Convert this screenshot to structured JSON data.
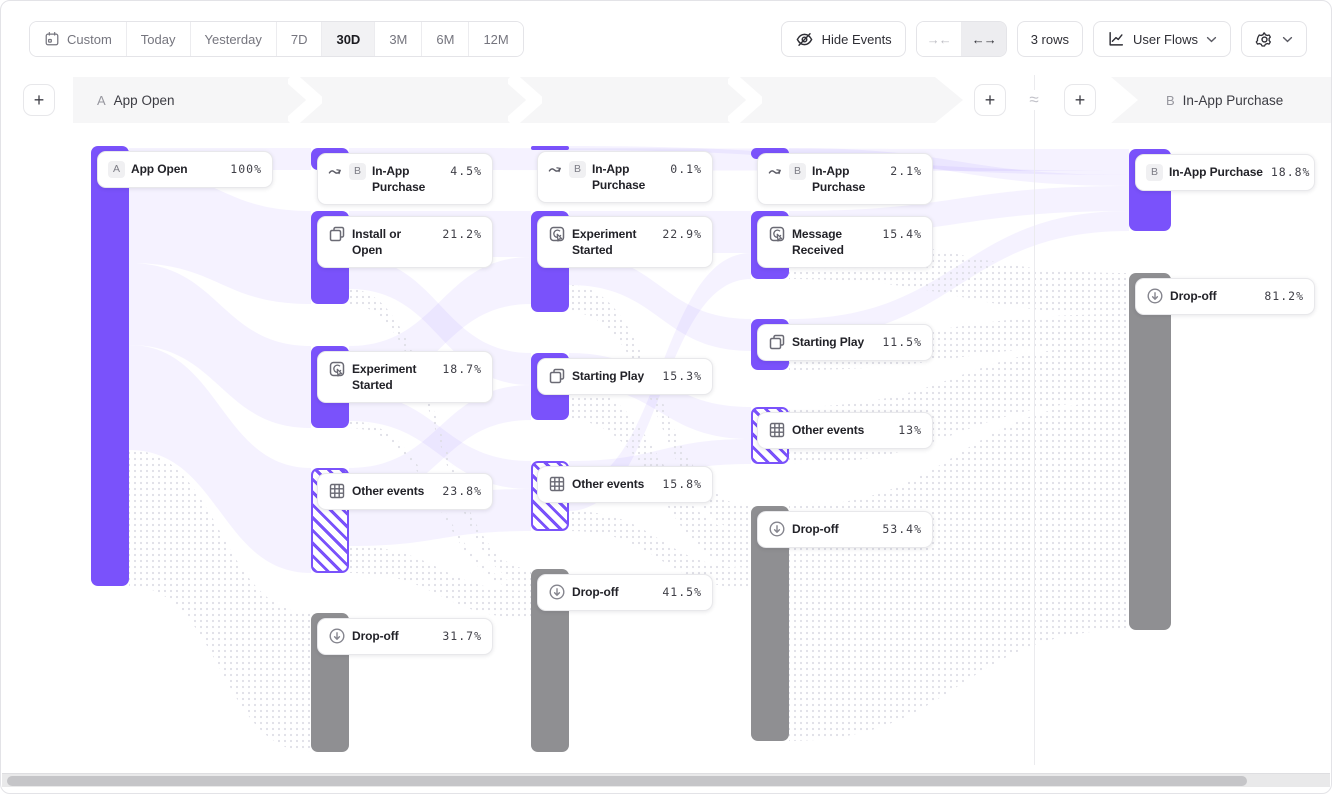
{
  "toolbar": {
    "date_ranges": [
      "Custom",
      "Today",
      "Yesterday",
      "7D",
      "30D",
      "3M",
      "6M",
      "12M"
    ],
    "selected_range": "30D",
    "hide_events_label": "Hide Events",
    "rows_label": "3 rows",
    "view_label": "User Flows"
  },
  "flow_header": {
    "start_badge": "A",
    "start_label": "App Open",
    "end_badge": "B",
    "end_label": "In-App Purchase",
    "approx_symbol": "≈",
    "add_label": "+"
  },
  "columns": [
    {
      "nodes": [
        {
          "kind": "start",
          "badge": "A",
          "name": "App Open",
          "pct": "100%"
        }
      ]
    },
    {
      "nodes": [
        {
          "kind": "target",
          "badge": "B",
          "icon": "squiggle",
          "name": "In-App Purchase",
          "pct": "4.5%"
        },
        {
          "kind": "event",
          "icon": "copy",
          "name": "Install or Open",
          "pct": "21.2%"
        },
        {
          "kind": "event",
          "icon": "experiment",
          "name": "Experiment Started",
          "pct": "18.7%"
        },
        {
          "kind": "other",
          "icon": "grid",
          "name": "Other events",
          "pct": "23.8%"
        },
        {
          "kind": "dropoff",
          "icon": "drop",
          "name": "Drop-off",
          "pct": "31.7%"
        }
      ]
    },
    {
      "nodes": [
        {
          "kind": "target",
          "badge": "B",
          "icon": "squiggle",
          "name": "In-App Purchase",
          "pct": "0.1%"
        },
        {
          "kind": "event",
          "icon": "experiment",
          "name": "Experiment Started",
          "pct": "22.9%"
        },
        {
          "kind": "event",
          "icon": "copy",
          "name": "Starting Play",
          "pct": "15.3%"
        },
        {
          "kind": "other",
          "icon": "grid",
          "name": "Other events",
          "pct": "15.8%"
        },
        {
          "kind": "dropoff",
          "icon": "drop",
          "name": "Drop-off",
          "pct": "41.5%"
        }
      ]
    },
    {
      "nodes": [
        {
          "kind": "target",
          "badge": "B",
          "icon": "squiggle",
          "name": "In-App Purchase",
          "pct": "2.1%"
        },
        {
          "kind": "event",
          "icon": "experiment",
          "name": "Message Received",
          "pct": "15.4%"
        },
        {
          "kind": "event",
          "icon": "copy",
          "name": "Starting Play",
          "pct": "11.5%"
        },
        {
          "kind": "other",
          "icon": "grid",
          "name": "Other events",
          "pct": "13%"
        },
        {
          "kind": "dropoff",
          "icon": "drop",
          "name": "Drop-off",
          "pct": "53.4%"
        }
      ]
    },
    {
      "nodes": [
        {
          "kind": "end",
          "badge": "B",
          "name": "In-App Purchase",
          "pct": "18.8%"
        },
        {
          "kind": "dropoff",
          "icon": "drop",
          "name": "Drop-off",
          "pct": "81.2%"
        }
      ]
    }
  ],
  "colors": {
    "purple": "#7a52fb",
    "gray": "#8f8f92",
    "ribbon": "#efeefc",
    "band": "#f6f6f7"
  }
}
